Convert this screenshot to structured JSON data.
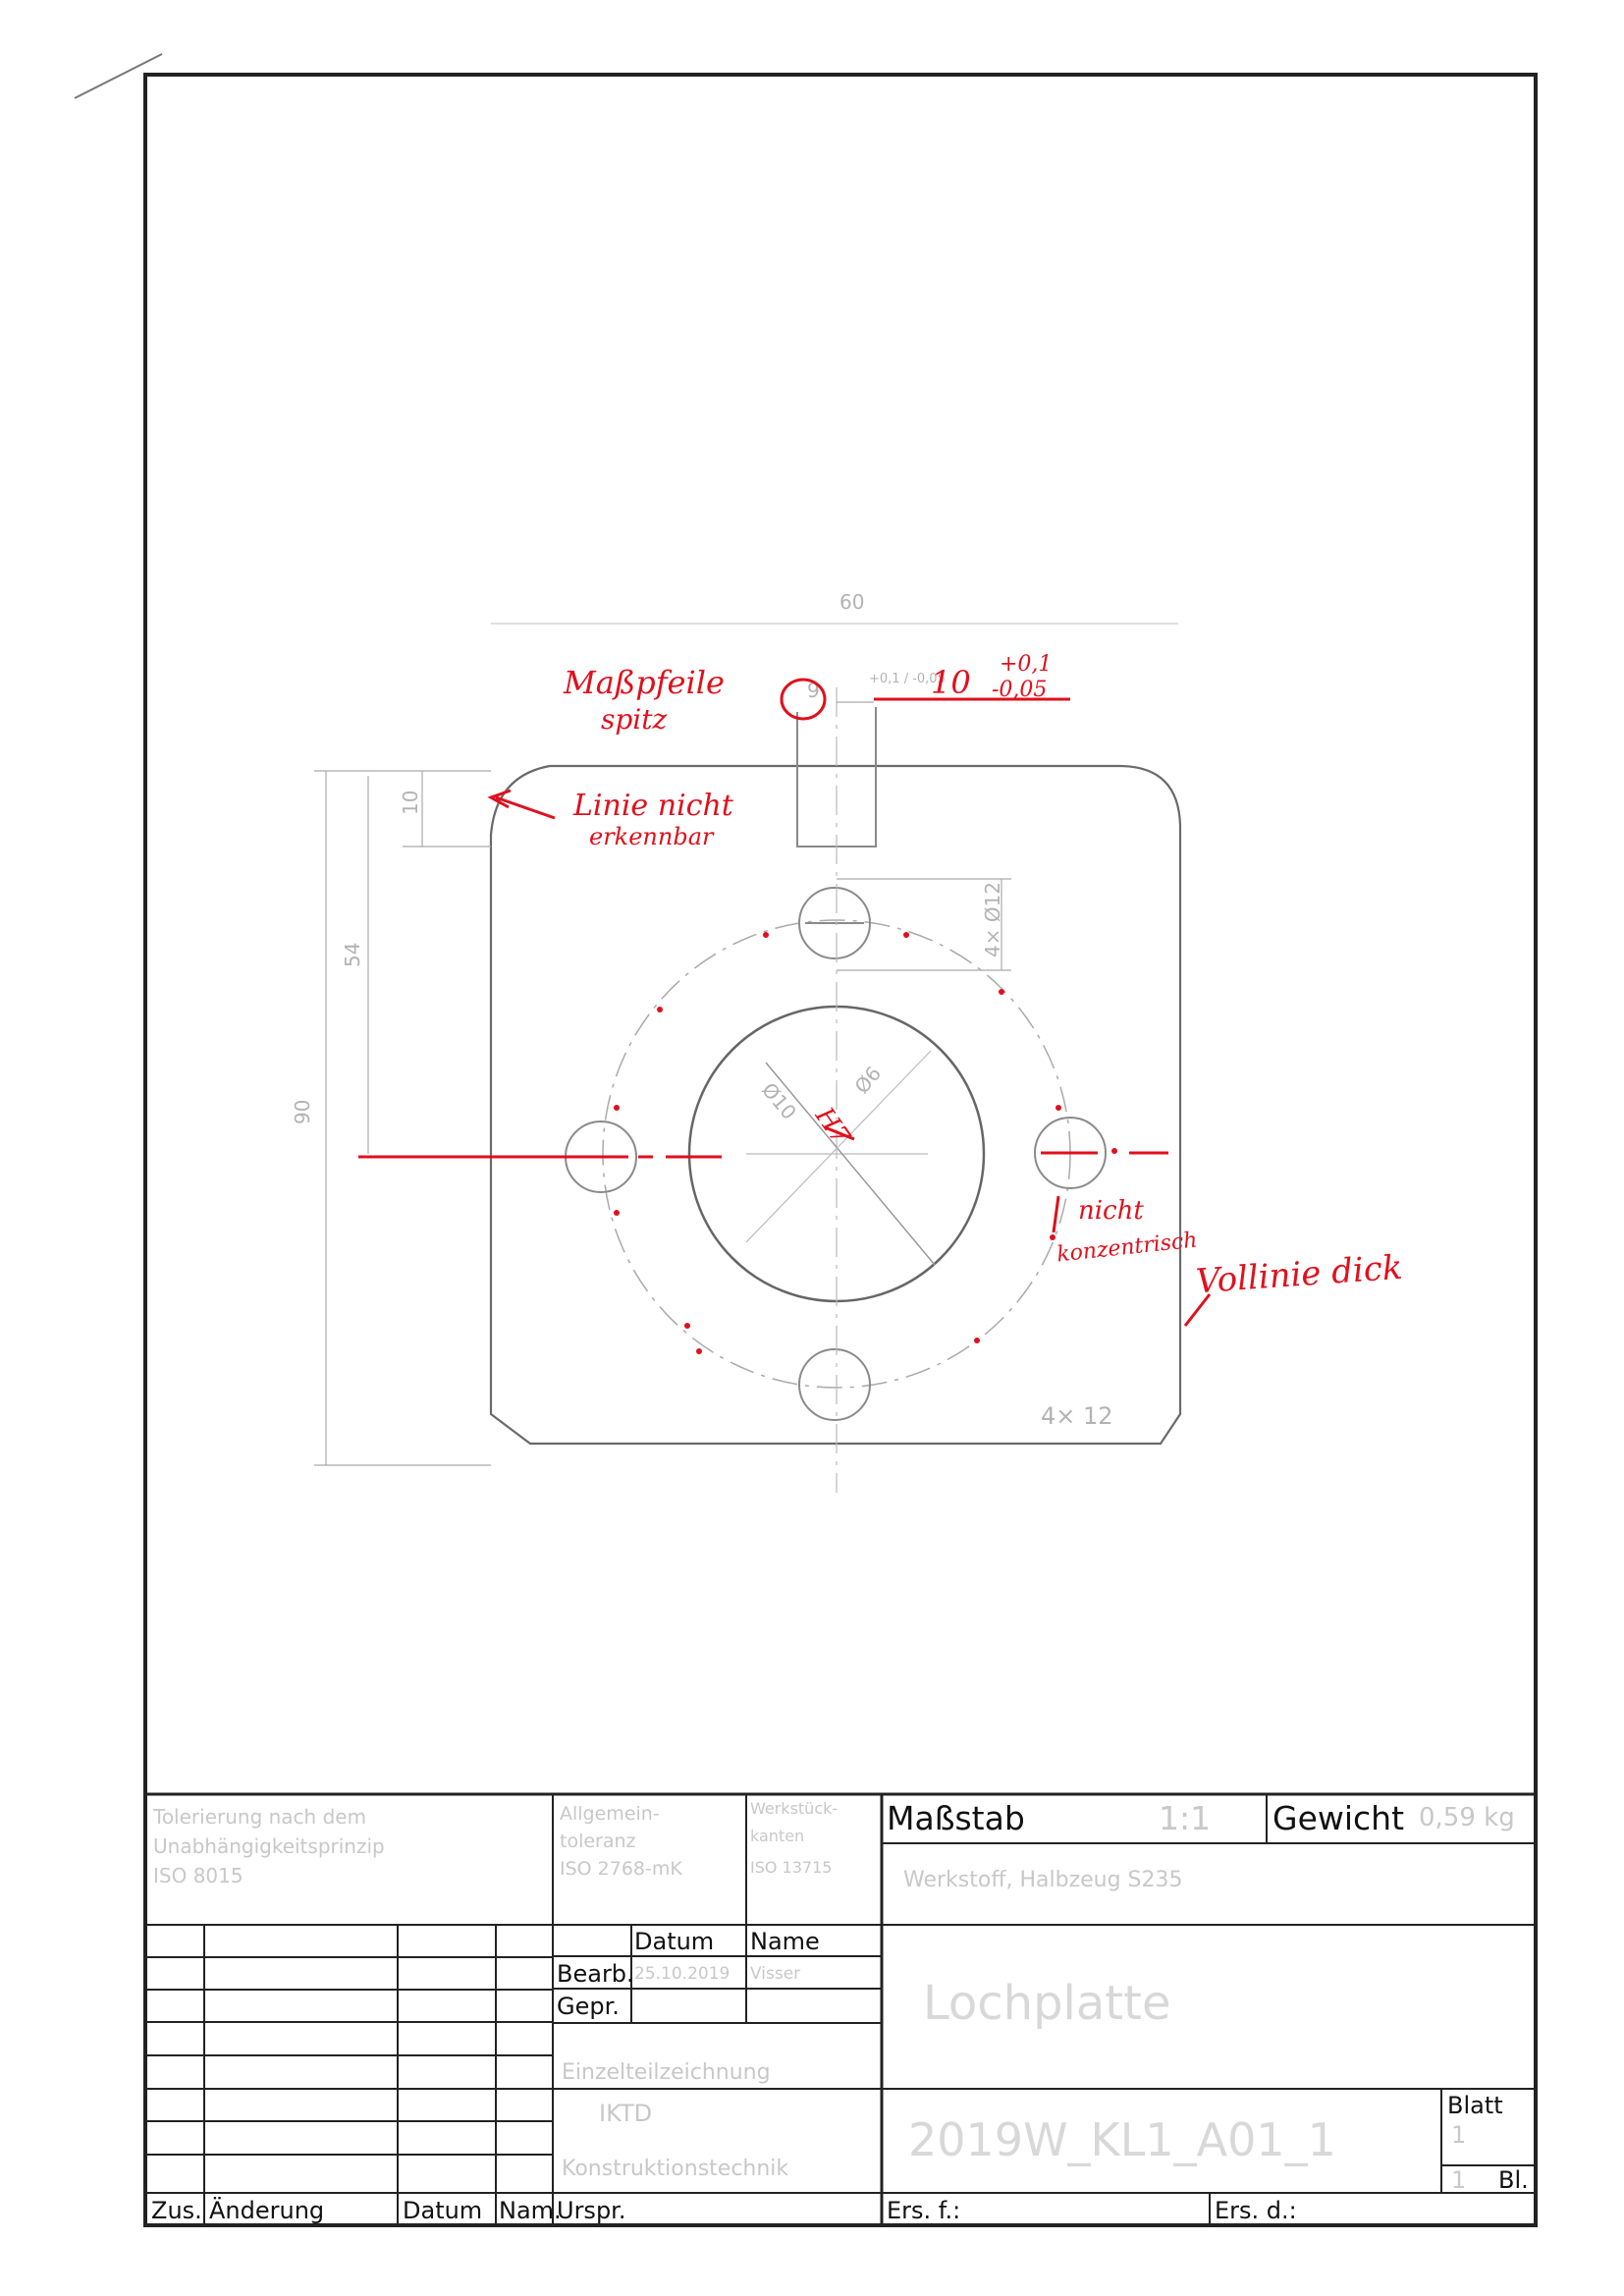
{
  "annotations": {
    "arrowheads": [
      "Maßpfeile",
      "spitz"
    ],
    "tolerance": {
      "nominal": "10",
      "upper": "+0,1",
      "lower": "-0,05"
    },
    "line_visibility": [
      "Linie nicht",
      "erkennbar"
    ],
    "hole_concentric": [
      "nicht",
      "konzentrisch"
    ],
    "outline": "Vollinie dick",
    "bore_fit": "H7"
  },
  "faint_drawing_text": {
    "dim_top": "60",
    "dim_left": "90",
    "dim_inner": "54",
    "dim_small": "10",
    "dim_slot": "9",
    "dim_hole_a": "Ø10",
    "dim_hole_b": "Ø6",
    "callout": "4× Ø12",
    "corner": "4× 12",
    "tol_small": "+0,1 / -0,05"
  },
  "title_block": {
    "tolerance_note": [
      "Tolerierung nach dem",
      "Unabhängigkeitsprinzip",
      "ISO 8015"
    ],
    "general_tol": [
      "Allgemein-",
      "toleranz",
      "ISO 2768-mK"
    ],
    "surface": [
      "Werkstück-",
      "kanten",
      "ISO 13715"
    ],
    "scale_label": "Maßstab",
    "scale_value": "1:1",
    "weight_label": "Gewicht",
    "weight_value": "0,59 kg",
    "material": "Werkstoff, Halbzeug     S235",
    "date_header": "Datum",
    "name_header": "Name",
    "drawn_label": "Bearb.",
    "drawn_date": "25.10.2019",
    "drawn_name": "Visser",
    "checked_label": "Gepr.",
    "title": "Lochplatte",
    "part_type": "Einzelteilzeichnung",
    "institute": "IKTD",
    "department": "Konstruktionstechnik",
    "drawing_no": "2019W_KL1_A01_1",
    "sheet_label": "Blatt",
    "sheet_value": "1",
    "sheets_total": "1",
    "sheets_label": "Bl.",
    "rev_zone": "Zus.",
    "rev_change": "Änderung",
    "rev_date": "Datum",
    "rev_name": "Nam.",
    "origin": "Urspr.",
    "replaces": "Ers. f.:",
    "replaced_by": "Ers. d.:"
  }
}
